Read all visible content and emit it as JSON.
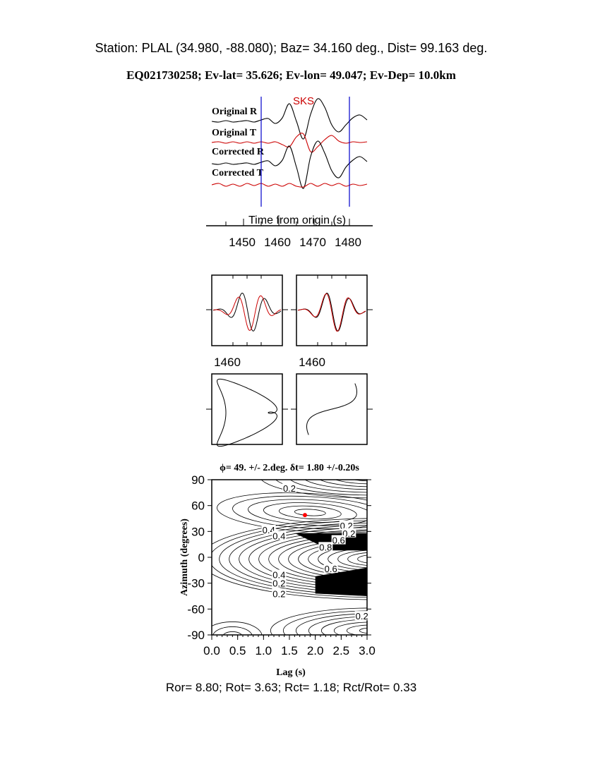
{
  "header": {
    "station_line": "Station: PLAL (34.980,  -88.080); Baz=   34.160 deg., Dist=   99.163 deg.",
    "event_line": "EQ021730258; Ev-lat=  35.626; Ev-lon=  49.047; Ev-Dep= 10.0km"
  },
  "footer": "Ror= 8.80; Rot= 3.63; Rct= 1.18; Rct/Rot= 0.33",
  "colors": {
    "radial": "#000000",
    "transverse": "#cc0000",
    "window": "#0000cc",
    "best_fit": "#ff0000"
  },
  "chart_data": [
    {
      "type": "line",
      "phase_label": "SKS",
      "xlabel": "Time from origin (s)",
      "xticks": [
        "1450",
        "1460",
        "1470",
        "1480"
      ],
      "xlim": [
        1441,
        1485
      ],
      "window": [
        1455,
        1480
      ],
      "x": [
        1441,
        1443,
        1445,
        1447,
        1449,
        1451,
        1453,
        1455,
        1457,
        1459,
        1461,
        1463,
        1465,
        1467,
        1469,
        1471,
        1473,
        1475,
        1477,
        1479,
        1481,
        1483,
        1485
      ],
      "series": [
        {
          "name": "Original R",
          "color": "#000000",
          "values": [
            0,
            -1,
            1,
            -1,
            0,
            1,
            -1,
            2,
            4,
            -3,
            5,
            25,
            0,
            -25,
            10,
            32,
            20,
            -5,
            -15,
            -5,
            5,
            9,
            2
          ]
        },
        {
          "name": "Original T",
          "color": "#cc0000",
          "values": [
            0,
            1,
            -1,
            1,
            -1,
            1,
            -1,
            1,
            -1,
            1,
            -3,
            -6,
            8,
            12,
            -13,
            -6,
            4,
            10,
            2,
            -1,
            1,
            0,
            1
          ]
        },
        {
          "name": "Corrected R",
          "color": "#000000",
          "values": [
            0,
            -1,
            1,
            -1,
            0,
            1,
            -1,
            2,
            4,
            -3,
            5,
            25,
            -5,
            -35,
            10,
            32,
            15,
            -10,
            -20,
            -5,
            5,
            10,
            3
          ]
        },
        {
          "name": "Corrected T",
          "color": "#cc0000",
          "values": [
            0,
            2,
            -2,
            1,
            -2,
            2,
            -1,
            2,
            -2,
            1,
            -2,
            2,
            -2,
            -3,
            2,
            -2,
            2,
            -1,
            2,
            -2,
            1,
            -1,
            1
          ]
        }
      ]
    },
    {
      "type": "line",
      "panels": [
        "original-waveforms",
        "corrected-waveforms"
      ],
      "xticks": [
        "1460",
        "1460"
      ]
    },
    {
      "type": "scatter",
      "panels": [
        "original-particle-motion",
        "corrected-particle-motion"
      ]
    },
    {
      "type": "heatmap",
      "title": "ϕ= 49. +/- 2.deg. δt= 1.80 +/-0.20s",
      "xlabel": "Lag (s)",
      "ylabel": "Azimuth (degrees)",
      "xlim": [
        0,
        3
      ],
      "ylim": [
        -90,
        90
      ],
      "xticks": [
        "0.0",
        "0.5",
        "1.0",
        "1.5",
        "2.0",
        "2.5",
        "3.0"
      ],
      "yticks": [
        "90",
        "60",
        "30",
        "0",
        "-30",
        "-60",
        "-90"
      ],
      "contour_labels": [
        "0.2",
        "0.2",
        "0.4",
        "0.2",
        "0.4",
        "0.6",
        "0.8",
        "0.6",
        "0.4",
        "0.2",
        "0.2",
        "0.2"
      ],
      "best_fit": {
        "lag": 1.8,
        "azimuth": 49
      }
    }
  ]
}
